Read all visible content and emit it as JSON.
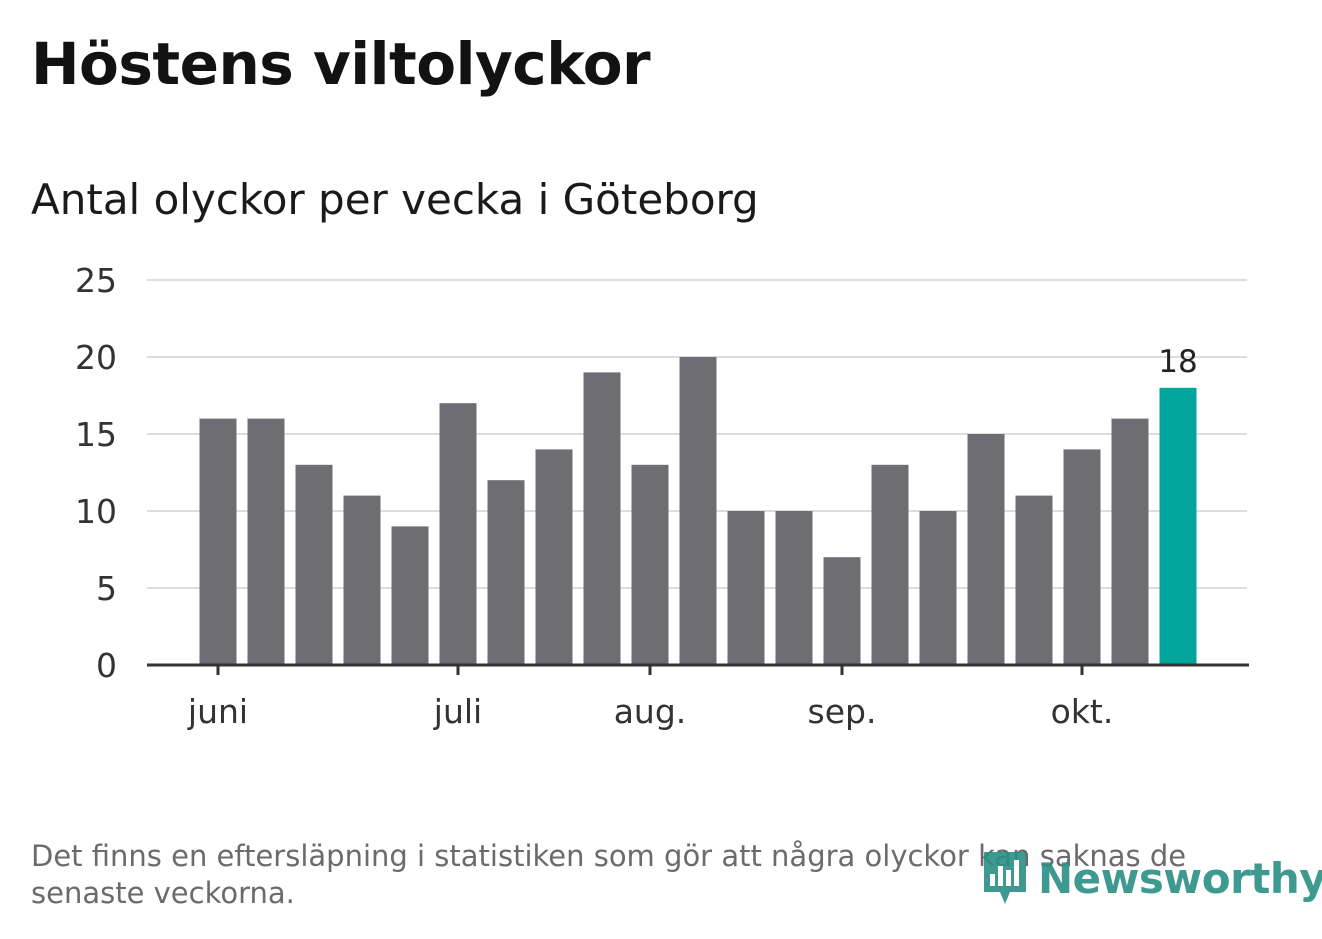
{
  "header": {
    "title": "Höstens viltolyckor",
    "subtitle": "Antal olyckor per vecka i Göteborg"
  },
  "footnote": "Det finns en eftersläpning i statistiken som gör att några olyckor kan saknas de senaste veckorna.",
  "brand": {
    "name": "Newsworthy",
    "icon": "newsworthy-chart-icon"
  },
  "colors": {
    "bar": "#6e6d74",
    "highlight": "#00a59b",
    "grid": "#dddddd",
    "axis": "#333333",
    "brand": "#2a8f86"
  },
  "chart_data": {
    "type": "bar",
    "title": "Antal olyckor per vecka i Göteborg",
    "xlabel": "",
    "ylabel": "",
    "ylim": [
      0,
      25
    ],
    "yticks": [
      0,
      5,
      10,
      15,
      20,
      25
    ],
    "grid": true,
    "values": [
      16,
      16,
      13,
      11,
      9,
      17,
      12,
      14,
      19,
      13,
      20,
      10,
      10,
      7,
      13,
      10,
      15,
      11,
      14,
      16,
      18
    ],
    "highlight_index": 20,
    "highlight_label": "18",
    "month_labels": [
      {
        "label": "juni",
        "position": 0.0
      },
      {
        "label": "juli",
        "position": 5.0
      },
      {
        "label": "aug.",
        "position": 9.0
      },
      {
        "label": "sep.",
        "position": 13.0
      },
      {
        "label": "okt.",
        "position": 18.0
      }
    ]
  }
}
